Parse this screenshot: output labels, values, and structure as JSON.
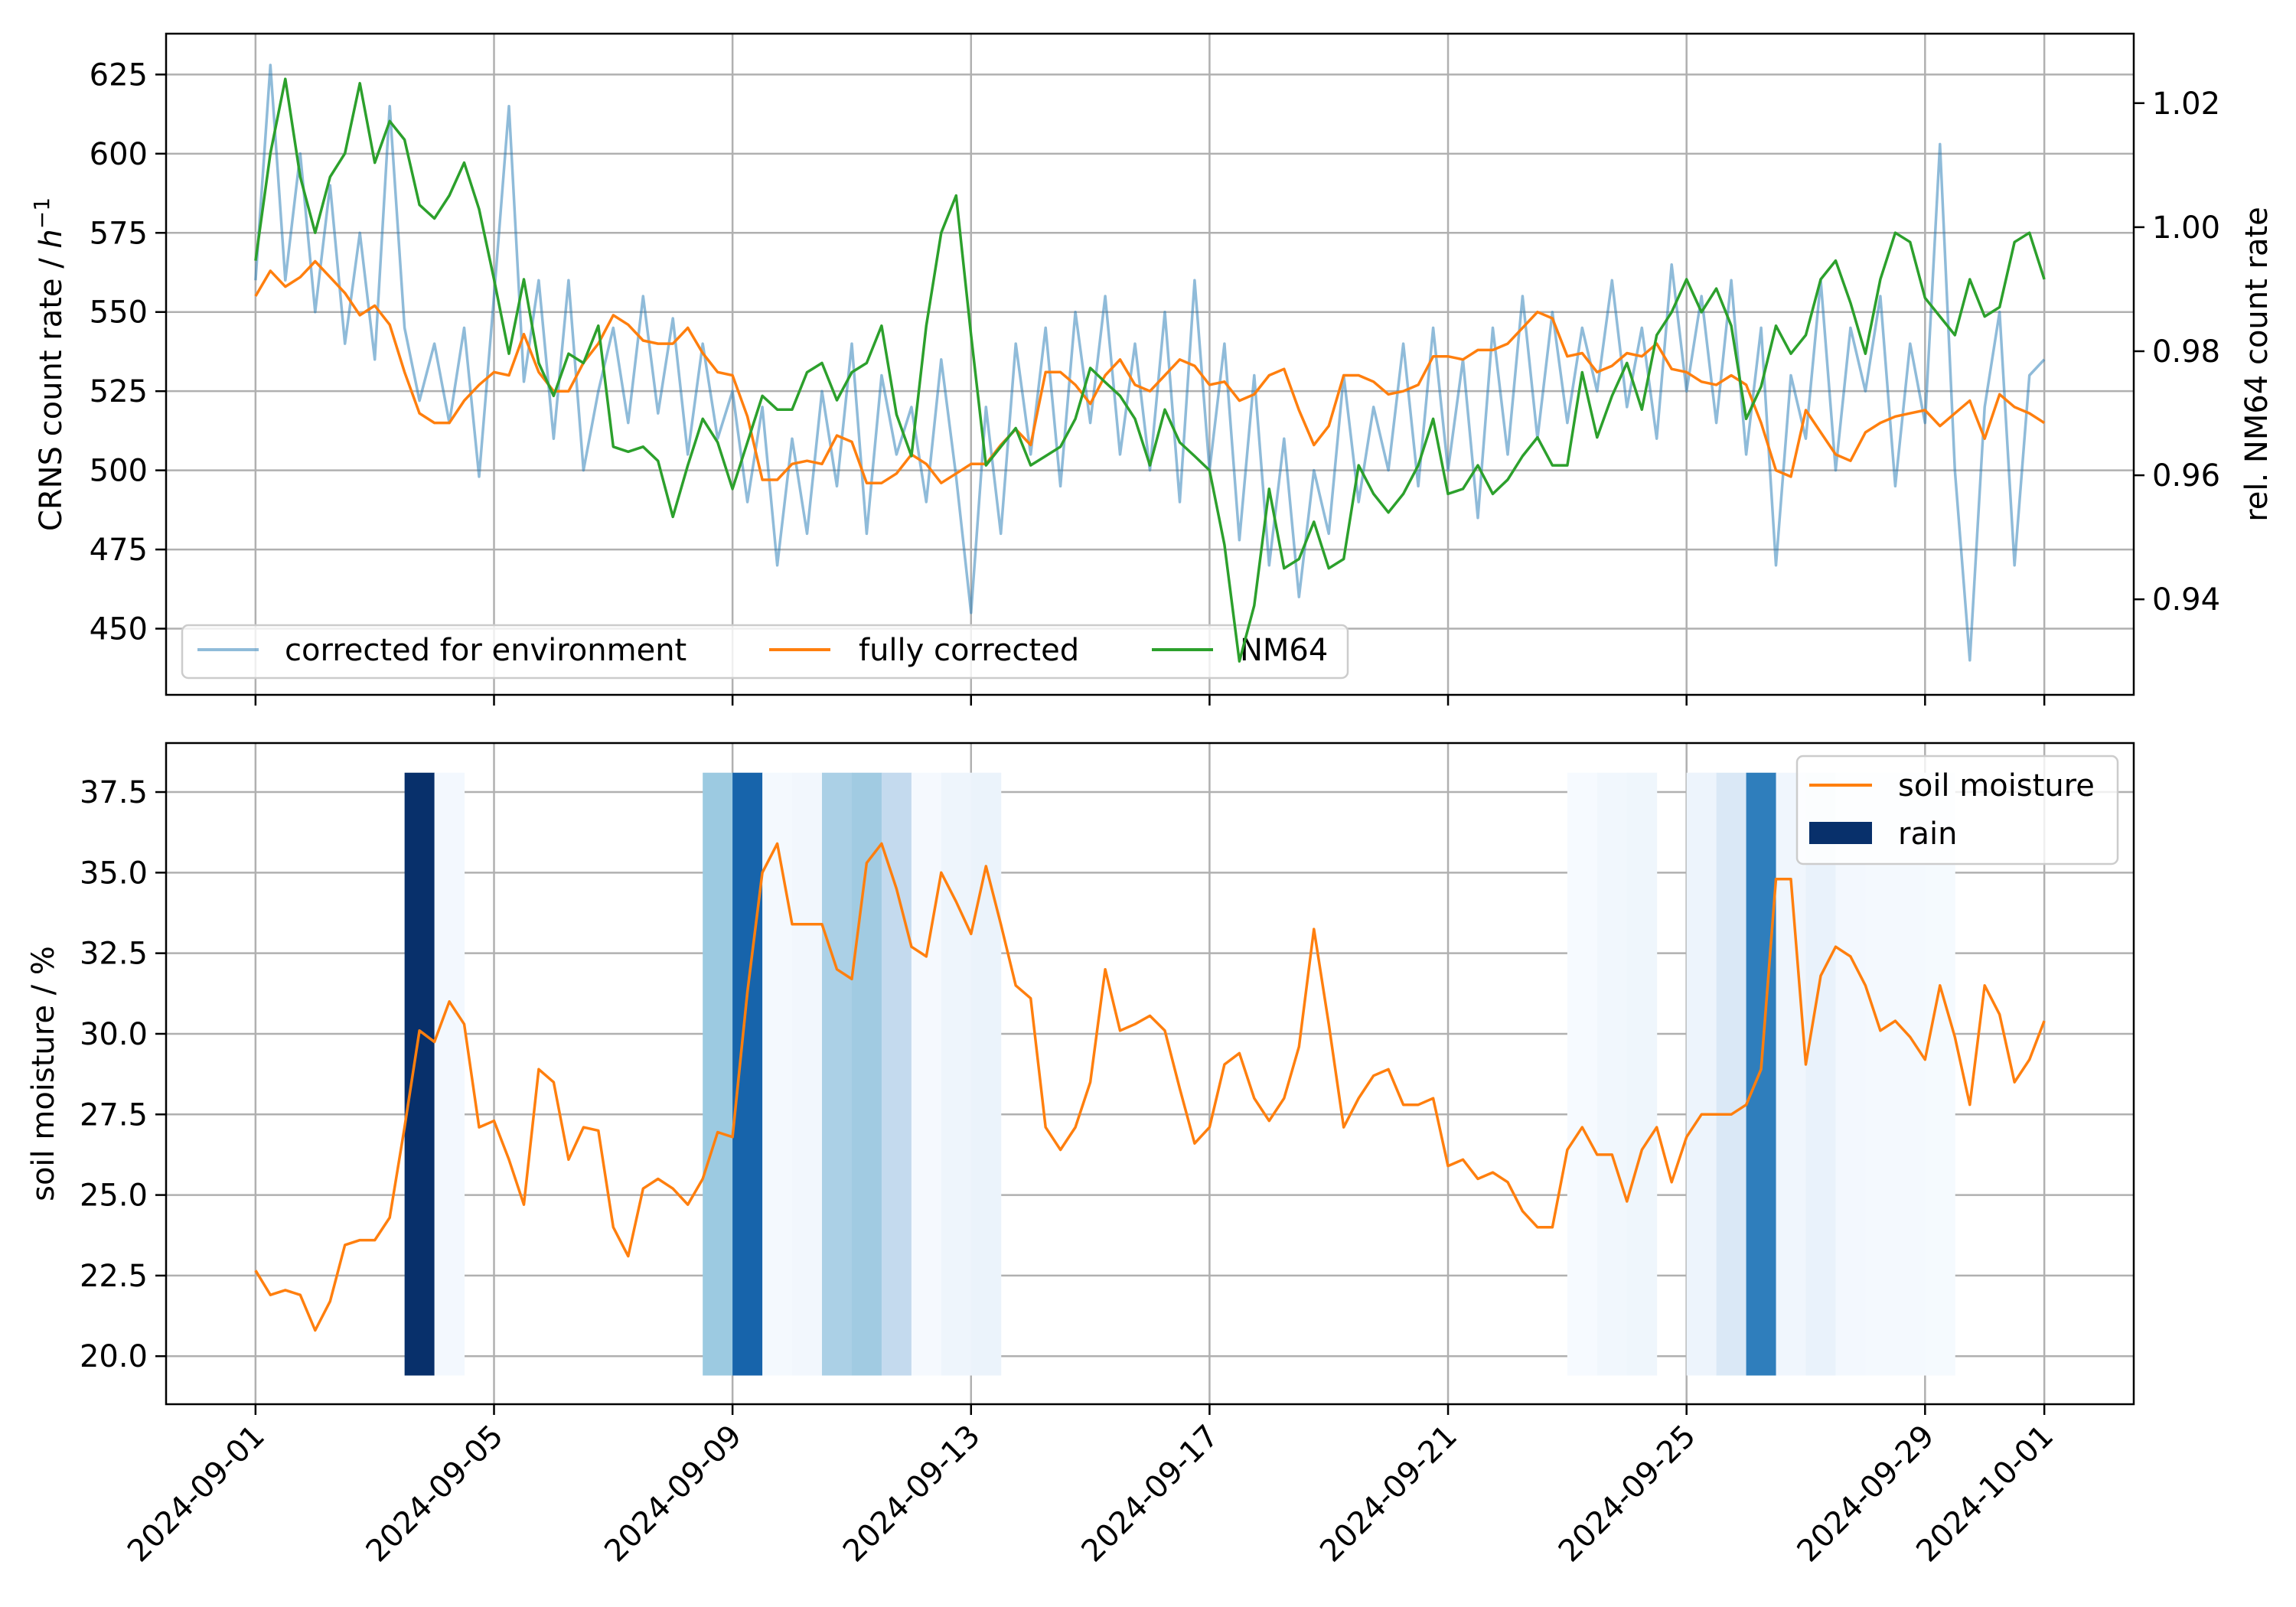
{
  "chart_data": [
    {
      "type": "line",
      "panel": "top",
      "ylabel_left": {
        "text": "CRNS count rate / ",
        "unit_italic": "h",
        "unit_sup": "−1"
      },
      "ylabel_right": "rel. NM64 count rate",
      "xlim": [
        "2024-08-30 12:00",
        "2024-10-02 12:00"
      ],
      "ylim_left": [
        429.1,
        637.9
      ],
      "ylim_right": [
        0.9246,
        1.0312
      ],
      "yticks_left": [
        "450",
        "475",
        "500",
        "525",
        "550",
        "575",
        "600",
        "625"
      ],
      "yticks_right": [
        "0.94",
        "0.96",
        "0.98",
        "1.00",
        "1.02"
      ],
      "xticks": [
        "2024-09-01",
        "2024-09-05",
        "2024-09-09",
        "2024-09-13",
        "2024-09-17",
        "2024-09-21",
        "2024-09-25",
        "2024-09-29",
        "2024-10-01"
      ],
      "xtick_labels_visible": false,
      "grid": true,
      "legend": {
        "placement": "lower-left",
        "columns": 3
      },
      "series": [
        {
          "name": "corrected for environment",
          "axis": "left",
          "color": "#1f77b4",
          "alpha": 0.5,
          "values": [
            560,
            628,
            560,
            600,
            550,
            590,
            540,
            575,
            535,
            615,
            545,
            522,
            540,
            515,
            545,
            498,
            555,
            615,
            528,
            560,
            510,
            560,
            500,
            525,
            545,
            515,
            555,
            518,
            548,
            505,
            540,
            510,
            525,
            490,
            520,
            470,
            510,
            480,
            525,
            495,
            540,
            480,
            530,
            505,
            520,
            490,
            535,
            498,
            455,
            520,
            480,
            540,
            505,
            545,
            495,
            550,
            515,
            555,
            505,
            540,
            500,
            550,
            490,
            560,
            500,
            540,
            478,
            530,
            470,
            510,
            460,
            500,
            480,
            530,
            490,
            520,
            500,
            540,
            495,
            545,
            500,
            535,
            485,
            545,
            505,
            555,
            510,
            550,
            515,
            545,
            525,
            560,
            520,
            545,
            510,
            565,
            525,
            555,
            515,
            560,
            505,
            545,
            470,
            530,
            510,
            560,
            500,
            545,
            525,
            555,
            495,
            540,
            515,
            603,
            500,
            440,
            520,
            550,
            470,
            530,
            535
          ]
        },
        {
          "name": "fully corrected",
          "axis": "left",
          "color": "#ff7f0e",
          "values": [
            555,
            563,
            558,
            561,
            566,
            561,
            556,
            549,
            552,
            546,
            531,
            518,
            515,
            515,
            522,
            527,
            531,
            530,
            543,
            531,
            525,
            525,
            534,
            540,
            549,
            546,
            541,
            540,
            540,
            545,
            537,
            531,
            530,
            517,
            497,
            497,
            502,
            503,
            502,
            511,
            509,
            496,
            496,
            499,
            505,
            502,
            496,
            499,
            502,
            502,
            508,
            513,
            508,
            531,
            531,
            527,
            521,
            530,
            535,
            527,
            525,
            530,
            535,
            533,
            527,
            528,
            522,
            524,
            530,
            532,
            519,
            508,
            514,
            530,
            530,
            528,
            524,
            525,
            527,
            536,
            536,
            535,
            538,
            538,
            540,
            545,
            550,
            548,
            536,
            537,
            531,
            533,
            537,
            536,
            540,
            532,
            531,
            528,
            527,
            530,
            527,
            515,
            500,
            498,
            519,
            512,
            505,
            503,
            512,
            515,
            517,
            518,
            519,
            514,
            518,
            522,
            510,
            524,
            520,
            518,
            515
          ]
        },
        {
          "name": "NM64",
          "axis": "right",
          "color": "#2ca02c",
          "values": [
            0.9946,
            1.0119,
            1.0239,
            1.0081,
            0.9991,
            1.0081,
            1.0119,
            1.0232,
            1.0104,
            1.0171,
            1.0141,
            1.0036,
            1.0014,
            1.0051,
            1.0104,
            1.0029,
            0.9916,
            0.9796,
            0.9916,
            0.9781,
            0.9728,
            0.9796,
            0.9781,
            0.9841,
            0.9646,
            0.9638,
            0.9646,
            0.9623,
            0.9533,
            0.9616,
            0.9691,
            0.9653,
            0.9578,
            0.9653,
            0.9728,
            0.9706,
            0.9706,
            0.9766,
            0.9781,
            0.9721,
            0.9766,
            0.9781,
            0.9841,
            0.9698,
            0.9631,
            0.9841,
            0.9991,
            1.0051,
            0.9826,
            0.9616,
            0.9646,
            0.9676,
            0.9616,
            0.9631,
            0.9646,
            0.9691,
            0.9773,
            0.975,
            0.9728,
            0.9691,
            0.9616,
            0.9706,
            0.9653,
            0.9631,
            0.9608,
            0.9488,
            0.93,
            0.939,
            0.9578,
            0.945,
            0.9465,
            0.9525,
            0.945,
            0.9465,
            0.9616,
            0.957,
            0.954,
            0.957,
            0.9616,
            0.9691,
            0.957,
            0.9578,
            0.9616,
            0.957,
            0.9593,
            0.9631,
            0.9661,
            0.9616,
            0.9616,
            0.9766,
            0.9661,
            0.9728,
            0.9781,
            0.9706,
            0.9826,
            0.9863,
            0.9916,
            0.9863,
            0.9901,
            0.9841,
            0.9691,
            0.9743,
            0.9841,
            0.9796,
            0.9826,
            0.9916,
            0.9946,
            0.9878,
            0.9796,
            0.9916,
            0.9991,
            0.9976,
            0.9886,
            0.9856,
            0.9826,
            0.9916,
            0.9856,
            0.9871,
            0.9976,
            0.9991,
            0.9916
          ]
        }
      ]
    },
    {
      "type": "line",
      "panel": "bottom",
      "ylabel": "soil moisture / %",
      "xlim": [
        "2024-08-30 12:00",
        "2024-10-02 12:00"
      ],
      "ylim": [
        18.51,
        39.02
      ],
      "yticks": [
        "20.0",
        "22.5",
        "25.0",
        "27.5",
        "30.0",
        "32.5",
        "35.0",
        "37.5"
      ],
      "xticks": [
        "2024-09-01",
        "2024-09-05",
        "2024-09-09",
        "2024-09-13",
        "2024-09-17",
        "2024-09-21",
        "2024-09-25",
        "2024-09-29",
        "2024-10-01"
      ],
      "xtick_rotation_deg": 45,
      "grid": true,
      "legend": {
        "placement": "upper-right"
      },
      "series": [
        {
          "name": "soil moisture",
          "color": "#ff7f0e",
          "values": [
            22.66,
            21.9,
            22.05,
            21.9,
            20.8,
            21.7,
            23.45,
            23.6,
            23.6,
            24.3,
            27.1,
            30.1,
            29.75,
            31.0,
            30.3,
            27.1,
            27.3,
            26.1,
            24.7,
            28.9,
            28.5,
            26.1,
            27.1,
            27.0,
            24.0,
            23.1,
            25.2,
            25.5,
            25.2,
            24.7,
            25.5,
            26.95,
            26.8,
            31.3,
            35.0,
            35.9,
            33.4,
            33.4,
            33.4,
            32.0,
            31.7,
            35.3,
            35.9,
            34.5,
            32.7,
            32.4,
            35.0,
            34.1,
            33.1,
            35.2,
            33.4,
            31.5,
            31.1,
            27.1,
            26.4,
            27.1,
            28.5,
            32.0,
            30.1,
            30.3,
            30.56,
            30.1,
            28.3,
            26.6,
            27.1,
            29.05,
            29.4,
            28.0,
            27.3,
            28.0,
            29.6,
            33.25,
            30.3,
            27.1,
            28.0,
            28.7,
            28.9,
            27.8,
            27.8,
            28.0,
            25.9,
            26.1,
            25.5,
            25.7,
            25.4,
            24.5,
            24.0,
            24.0,
            26.4,
            27.1,
            26.25,
            26.25,
            24.8,
            26.4,
            27.1,
            25.4,
            26.8,
            27.5,
            27.5,
            27.5,
            27.8,
            28.9,
            34.8,
            34.8,
            29.05,
            31.8,
            32.7,
            32.4,
            31.5,
            30.1,
            30.4,
            29.9,
            29.2,
            31.5,
            29.9,
            27.8,
            31.5,
            30.6,
            28.5,
            29.2,
            30.4
          ]
        }
      ],
      "rain": {
        "name": "rain",
        "legend_color": "#08306b",
        "colormap": "Blues",
        "span": [
          19.4,
          38.1
        ],
        "bins": [
          {
            "start": "2024-09-03 12:00",
            "end": "2024-09-04 00:00",
            "color": "#08306b"
          },
          {
            "start": "2024-09-04 00:00",
            "end": "2024-09-04 12:00",
            "color": "#f3f8fe"
          },
          {
            "start": "2024-09-08 12:00",
            "end": "2024-09-09 00:00",
            "color": "#9ccae1"
          },
          {
            "start": "2024-09-09 00:00",
            "end": "2024-09-09 12:00",
            "color": "#1764ab"
          },
          {
            "start": "2024-09-09 12:00",
            "end": "2024-09-10 00:00",
            "color": "#f4f9fe"
          },
          {
            "start": "2024-09-10 00:00",
            "end": "2024-09-10 12:00",
            "color": "#f2f7fd"
          },
          {
            "start": "2024-09-10 12:00",
            "end": "2024-09-11 00:00",
            "color": "#abd0e6"
          },
          {
            "start": "2024-09-11 00:00",
            "end": "2024-09-11 12:00",
            "color": "#a1cbe2"
          },
          {
            "start": "2024-09-11 12:00",
            "end": "2024-09-12 00:00",
            "color": "#c4daee"
          },
          {
            "start": "2024-09-12 00:00",
            "end": "2024-09-12 12:00",
            "color": "#f5f9fe"
          },
          {
            "start": "2024-09-12 12:00",
            "end": "2024-09-13 00:00",
            "color": "#eef5fc"
          },
          {
            "start": "2024-09-13 00:00",
            "end": "2024-09-13 12:00",
            "color": "#ebf3fb"
          },
          {
            "start": "2024-09-23 00:00",
            "end": "2024-09-23 12:00",
            "color": "#f6faff"
          },
          {
            "start": "2024-09-23 12:00",
            "end": "2024-09-24 00:00",
            "color": "#f1f7fd"
          },
          {
            "start": "2024-09-24 00:00",
            "end": "2024-09-24 12:00",
            "color": "#eff6fc"
          },
          {
            "start": "2024-09-25 00:00",
            "end": "2024-09-25 12:00",
            "color": "#edf4fc"
          },
          {
            "start": "2024-09-25 12:00",
            "end": "2024-09-26 00:00",
            "color": "#dae8f6"
          },
          {
            "start": "2024-09-26 00:00",
            "end": "2024-09-26 12:00",
            "color": "#2f7ebc"
          },
          {
            "start": "2024-09-26 12:00",
            "end": "2024-09-27 00:00",
            "color": "#f0f6fd"
          },
          {
            "start": "2024-09-27 00:00",
            "end": "2024-09-27 12:00",
            "color": "#e9f2fb"
          },
          {
            "start": "2024-09-27 12:00",
            "end": "2024-09-28 00:00",
            "color": "#f3f8fe"
          },
          {
            "start": "2024-09-28 00:00",
            "end": "2024-09-28 12:00",
            "color": "#f4f9fe"
          },
          {
            "start": "2024-09-28 12:00",
            "end": "2024-09-29 00:00",
            "color": "#f4f9fe"
          },
          {
            "start": "2024-09-29 00:00",
            "end": "2024-09-29 12:00",
            "color": "#f5fafe"
          }
        ]
      }
    }
  ],
  "x": [
    "2024-09-01 00:00",
    "2024-09-01 06:00",
    "2024-09-01 12:00",
    "2024-09-01 18:00",
    "2024-09-02 00:00",
    "2024-09-02 06:00",
    "2024-09-02 12:00",
    "2024-09-02 18:00",
    "2024-09-03 00:00",
    "2024-09-03 06:00",
    "2024-09-03 12:00",
    "2024-09-03 18:00",
    "2024-09-04 00:00",
    "2024-09-04 06:00",
    "2024-09-04 12:00",
    "2024-09-04 18:00",
    "2024-09-05 00:00",
    "2024-09-05 06:00",
    "2024-09-05 12:00",
    "2024-09-05 18:00",
    "2024-09-06 00:00",
    "2024-09-06 06:00",
    "2024-09-06 12:00",
    "2024-09-06 18:00",
    "2024-09-07 00:00",
    "2024-09-07 06:00",
    "2024-09-07 12:00",
    "2024-09-07 18:00",
    "2024-09-08 00:00",
    "2024-09-08 06:00",
    "2024-09-08 12:00",
    "2024-09-08 18:00",
    "2024-09-09 00:00",
    "2024-09-09 06:00",
    "2024-09-09 12:00",
    "2024-09-09 18:00",
    "2024-09-10 00:00",
    "2024-09-10 06:00",
    "2024-09-10 12:00",
    "2024-09-10 18:00",
    "2024-09-11 00:00",
    "2024-09-11 06:00",
    "2024-09-11 12:00",
    "2024-09-11 18:00",
    "2024-09-12 00:00",
    "2024-09-12 06:00",
    "2024-09-12 12:00",
    "2024-09-12 18:00",
    "2024-09-13 00:00",
    "2024-09-13 06:00",
    "2024-09-13 12:00",
    "2024-09-13 18:00",
    "2024-09-14 00:00",
    "2024-09-14 06:00",
    "2024-09-14 12:00",
    "2024-09-14 18:00",
    "2024-09-15 00:00",
    "2024-09-15 06:00",
    "2024-09-15 12:00",
    "2024-09-15 18:00",
    "2024-09-16 00:00",
    "2024-09-16 06:00",
    "2024-09-16 12:00",
    "2024-09-16 18:00",
    "2024-09-17 00:00",
    "2024-09-17 06:00",
    "2024-09-17 12:00",
    "2024-09-17 18:00",
    "2024-09-18 00:00",
    "2024-09-18 06:00",
    "2024-09-18 12:00",
    "2024-09-18 18:00",
    "2024-09-19 00:00",
    "2024-09-19 06:00",
    "2024-09-19 12:00",
    "2024-09-19 18:00",
    "2024-09-20 00:00",
    "2024-09-20 06:00",
    "2024-09-20 12:00",
    "2024-09-20 18:00",
    "2024-09-21 00:00",
    "2024-09-21 06:00",
    "2024-09-21 12:00",
    "2024-09-21 18:00",
    "2024-09-22 00:00",
    "2024-09-22 06:00",
    "2024-09-22 12:00",
    "2024-09-22 18:00",
    "2024-09-23 00:00",
    "2024-09-23 06:00",
    "2024-09-23 12:00",
    "2024-09-23 18:00",
    "2024-09-24 00:00",
    "2024-09-24 06:00",
    "2024-09-24 12:00",
    "2024-09-24 18:00",
    "2024-09-25 00:00",
    "2024-09-25 06:00",
    "2024-09-25 12:00",
    "2024-09-25 18:00",
    "2024-09-26 00:00",
    "2024-09-26 06:00",
    "2024-09-26 12:00",
    "2024-09-26 18:00",
    "2024-09-27 00:00",
    "2024-09-27 06:00",
    "2024-09-27 12:00",
    "2024-09-27 18:00",
    "2024-09-28 00:00",
    "2024-09-28 06:00",
    "2024-09-28 12:00",
    "2024-09-28 18:00",
    "2024-09-29 00:00",
    "2024-09-29 06:00",
    "2024-09-29 12:00",
    "2024-09-29 18:00",
    "2024-09-30 00:00",
    "2024-09-30 06:00",
    "2024-09-30 12:00",
    "2024-09-30 18:00",
    "2024-10-01 00:00"
  ]
}
